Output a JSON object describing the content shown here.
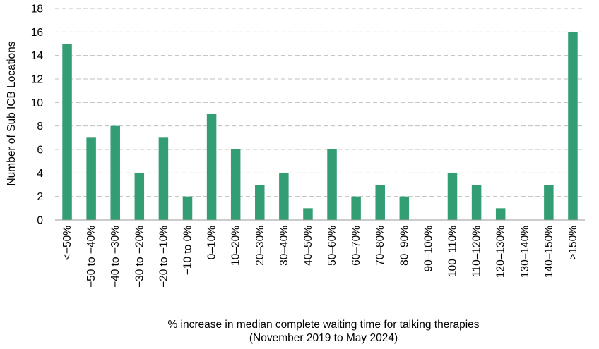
{
  "chart_data": {
    "type": "bar",
    "categories": [
      "<−50%",
      "−50 to −40%",
      "−40 to −30%",
      "−30 to −20%",
      "−20 to −10%",
      "−10 to 0%",
      "0–10%",
      "10–20%",
      "20–30%",
      "30–40%",
      "40–50%",
      "50–60%",
      "60–70%",
      "70–80%",
      "80–90%",
      "90–100%",
      "100–110%",
      "110–120%",
      "120–130%",
      "130–140%",
      "140–150%",
      ">150%"
    ],
    "values": [
      15,
      7,
      8,
      4,
      7,
      2,
      9,
      6,
      3,
      4,
      1,
      6,
      2,
      3,
      2,
      0,
      4,
      3,
      1,
      0,
      3,
      16
    ],
    "title": "",
    "xlabel": [
      "% increase in median complete waiting time for talking therapies",
      "(November 2019 to May 2024)"
    ],
    "ylabel": "Number of Sub ICB Locations",
    "ylim": [
      0,
      18
    ],
    "yticks": [
      0,
      2,
      4,
      6,
      8,
      10,
      12,
      14,
      16,
      18
    ],
    "grid": true,
    "bar_color": "#339E73",
    "grid_color": "#BFBFBF"
  }
}
